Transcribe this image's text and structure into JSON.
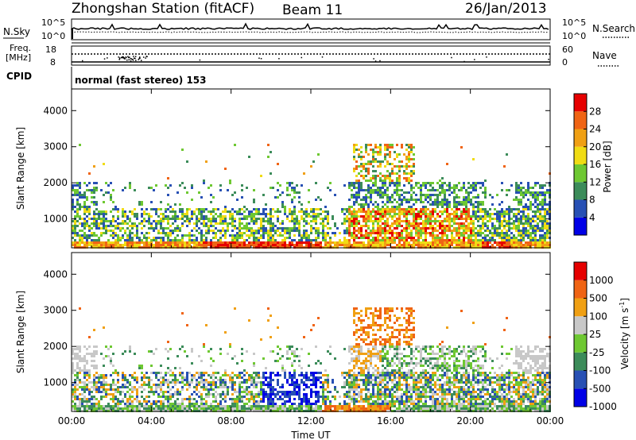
{
  "header": {
    "station": "Zhongshan Station (fitACF)",
    "beam": "Beam 11",
    "date": "26/Jan/2013"
  },
  "strip1": {
    "left_label": "N.Sky",
    "left_ticks": [
      "10^5",
      "10^0"
    ],
    "right_label": "N.Search",
    "right_ticks": [
      "10^5",
      "10^0"
    ]
  },
  "strip2": {
    "left_label_1": "Freq.",
    "left_label_2": "[MHz]",
    "left_ticks": [
      "18",
      "8"
    ],
    "right_label": "Nave",
    "right_ticks": [
      "60",
      "0"
    ]
  },
  "cpid": {
    "label": "CPID",
    "text": "normal (fast stereo) 153"
  },
  "xaxis": {
    "label": "Time UT",
    "ticks": [
      "00:00",
      "04:00",
      "08:00",
      "12:00",
      "16:00",
      "20:00",
      "00:00"
    ]
  },
  "colors": {
    "power": [
      "#0000e6",
      "#2850b4",
      "#3c8c5a",
      "#6ec832",
      "#f0dc14",
      "#f0a014",
      "#f06414",
      "#e60000"
    ],
    "velocity": [
      "#e60000",
      "#f06414",
      "#f0a014",
      "#c8c8c8",
      "#6ec832",
      "#3c8c5a",
      "#2850b4",
      "#0000e6"
    ]
  },
  "chart_data": [
    {
      "type": "heatmap",
      "name": "power",
      "ylabel": "Slant Range [km]",
      "yticks": [
        1000,
        2000,
        3000,
        4000
      ],
      "ylim": [
        200,
        4600
      ],
      "xlim_hours": [
        0,
        24
      ],
      "colorbar_label": "Power [dB]",
      "colorbar_ticks": [
        "4",
        "8",
        "12",
        "16",
        "20",
        "24",
        "28"
      ],
      "grid": false
    },
    {
      "type": "heatmap",
      "name": "velocity",
      "ylabel": "Slant Range [km]",
      "yticks": [
        1000,
        2000,
        3000,
        4000
      ],
      "ylim": [
        200,
        4600
      ],
      "xlim_hours": [
        0,
        24
      ],
      "colorbar_label": "Velocity [m s",
      "colorbar_label_sup": "-1",
      "colorbar_label_end": "]",
      "colorbar_ticks": [
        "1000",
        "500",
        "100",
        "25",
        "-25",
        "-100",
        "-500",
        "-1000"
      ],
      "grid": false
    }
  ]
}
